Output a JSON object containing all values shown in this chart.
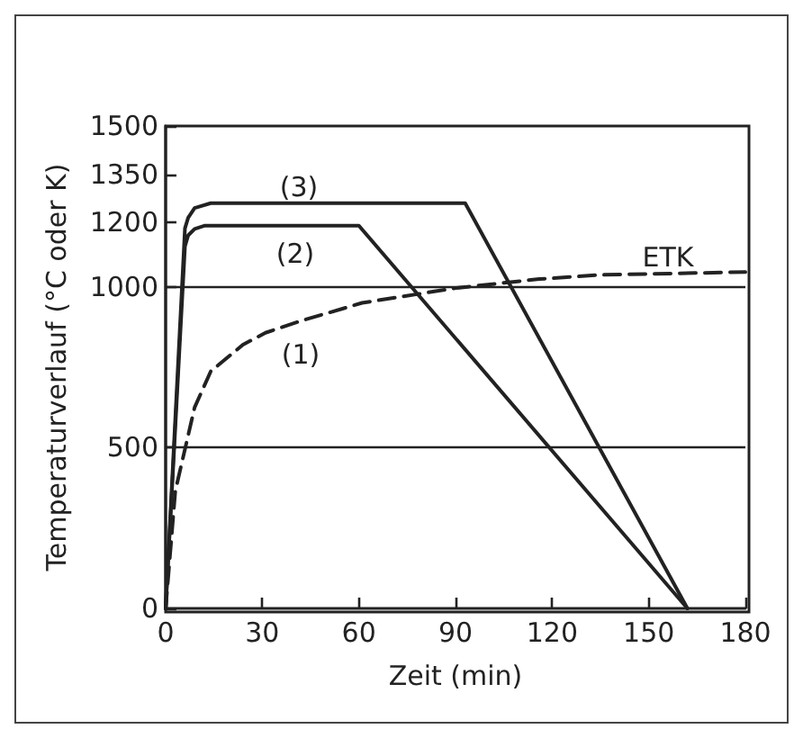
{
  "chart_data": {
    "type": "line",
    "xlabel": "Zeit (min)",
    "ylabel": "Temperaturverlauf (°C oder K)",
    "xlim": [
      0,
      180
    ],
    "xticks": [
      0,
      30,
      60,
      90,
      120,
      150,
      180
    ],
    "ylim": [
      0,
      1500
    ],
    "yticks": [
      0,
      500,
      1000,
      1200,
      1350,
      1500
    ],
    "grid": false,
    "marker": "none",
    "ref_lines": [
      {
        "axis": "y",
        "value": 500
      },
      {
        "axis": "y",
        "value": 1000
      }
    ],
    "series": [
      {
        "name": "(1)",
        "color": "#222222",
        "line_style": "dashed",
        "x": [
          0,
          3,
          9,
          14,
          24,
          31,
          42,
          61,
          90,
          116,
          135,
          180
        ],
        "values": [
          0,
          365,
          625,
          737,
          820,
          857,
          894,
          950,
          996,
          1024,
          1037,
          1046
        ]
      },
      {
        "name": "(2)",
        "color": "#222222",
        "line_style": "solid",
        "x": [
          0,
          6,
          7,
          9,
          12,
          60,
          162
        ],
        "values": [
          0,
          1126,
          1160,
          1180,
          1190,
          1190,
          0
        ]
      },
      {
        "name": "(3)",
        "color": "#222222",
        "line_style": "solid",
        "x": [
          0,
          6,
          7,
          9,
          14,
          93,
          162
        ],
        "values": [
          0,
          1182,
          1215,
          1245,
          1260,
          1260,
          0
        ]
      }
    ],
    "annotations": [
      "ETK"
    ]
  }
}
